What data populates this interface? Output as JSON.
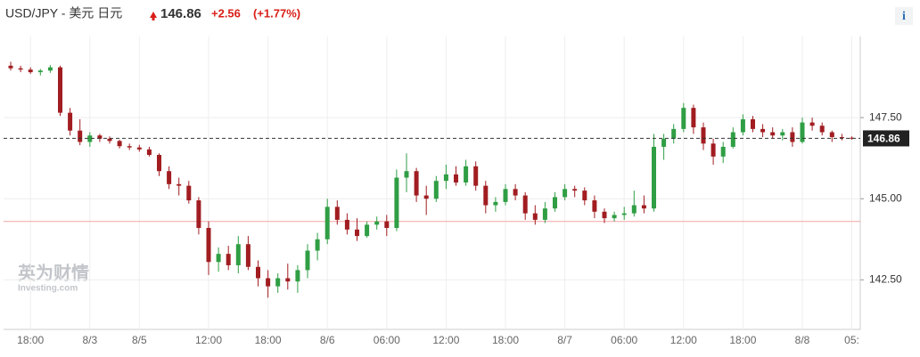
{
  "chart_data": {
    "type": "candlestick",
    "title": "USD/JPY - 美元 日元",
    "last_price": 146.86,
    "change": "+2.56",
    "change_pct": "(+1.77%)",
    "info": "i",
    "watermark": [
      "英为财情",
      "Investing.com"
    ],
    "reference_line": 144.3,
    "up_color": "#2f9e44",
    "down_color": "#a11d21",
    "grid": true,
    "categories": [
      null,
      null,
      "18:00",
      null,
      null,
      null,
      null,
      null,
      "8/3",
      null,
      null,
      null,
      null,
      "8/5",
      null,
      null,
      null,
      null,
      null,
      null,
      "12:00",
      null,
      null,
      null,
      null,
      null,
      "18:00",
      null,
      null,
      null,
      null,
      null,
      "8/6",
      null,
      null,
      null,
      null,
      null,
      "06:00",
      null,
      null,
      null,
      null,
      null,
      "12:00",
      null,
      null,
      null,
      null,
      null,
      "18:00",
      null,
      null,
      null,
      null,
      null,
      "8/7",
      null,
      null,
      null,
      null,
      null,
      "06:00",
      null,
      null,
      null,
      null,
      null,
      "12:00",
      null,
      null,
      null,
      null,
      null,
      "18:00",
      null,
      null,
      null,
      null,
      null,
      "8/8",
      null,
      null,
      null,
      null,
      "05:"
    ],
    "open": [
      149.1,
      149.02,
      148.98,
      148.9,
      148.95,
      149.05,
      147.65,
      147.1,
      146.75,
      146.95,
      146.85,
      146.78,
      146.62,
      146.58,
      146.52,
      146.35,
      145.85,
      145.45,
      145.4,
      144.95,
      144.1,
      143.05,
      143.3,
      142.95,
      143.6,
      142.9,
      142.55,
      142.3,
      142.55,
      142.45,
      142.8,
      143.4,
      143.75,
      144.75,
      144.35,
      144.05,
      143.85,
      144.2,
      144.3,
      144.1,
      145.65,
      145.85,
      145.1,
      145.0,
      145.55,
      145.75,
      145.5,
      146.0,
      145.4,
      144.8,
      144.9,
      145.3,
      145.1,
      144.55,
      144.35,
      144.7,
      145.05,
      145.3,
      145.25,
      144.95,
      144.6,
      144.4,
      144.5,
      144.55,
      144.8,
      144.7,
      146.6,
      146.85,
      147.15,
      147.8,
      147.2,
      146.7,
      146.3,
      146.6,
      147.05,
      147.45,
      147.15,
      147.05,
      146.95,
      147.05,
      146.75,
      147.35,
      147.25,
      147.05,
      146.9,
      146.88
    ],
    "high": [
      149.22,
      149.1,
      149.05,
      149.0,
      149.12,
      149.1,
      147.8,
      147.45,
      147.05,
      147.0,
      146.92,
      146.82,
      146.7,
      146.66,
      146.6,
      146.4,
      146.0,
      145.65,
      145.55,
      145.05,
      144.3,
      143.5,
      143.55,
      143.85,
      143.85,
      143.1,
      142.8,
      142.7,
      143.0,
      142.95,
      143.6,
      143.95,
      145.0,
      144.95,
      144.55,
      144.4,
      144.3,
      144.45,
      144.5,
      145.9,
      146.4,
      145.95,
      145.4,
      145.7,
      146.05,
      146.0,
      146.2,
      146.15,
      145.55,
      145.05,
      145.45,
      145.45,
      145.2,
      144.8,
      144.9,
      145.2,
      145.45,
      145.4,
      145.35,
      145.1,
      144.7,
      144.6,
      144.75,
      145.25,
      145.1,
      147.0,
      147.0,
      147.3,
      147.95,
      147.9,
      147.35,
      146.85,
      146.75,
      147.2,
      147.6,
      147.55,
      147.3,
      147.2,
      147.15,
      147.2,
      147.5,
      147.5,
      147.35,
      147.1,
      147.0,
      146.92
    ],
    "low": [
      148.95,
      148.9,
      148.85,
      148.8,
      148.88,
      147.55,
      146.95,
      146.65,
      146.6,
      146.75,
      146.7,
      146.55,
      146.5,
      146.45,
      146.3,
      145.7,
      145.3,
      145.1,
      144.85,
      143.9,
      142.65,
      142.75,
      142.8,
      142.7,
      142.8,
      142.3,
      141.95,
      142.1,
      142.2,
      142.1,
      142.55,
      143.1,
      143.6,
      144.2,
      143.9,
      143.7,
      143.8,
      144.05,
      143.85,
      144.0,
      145.2,
      144.9,
      144.5,
      144.9,
      145.3,
      145.4,
      145.4,
      145.25,
      144.55,
      144.6,
      144.8,
      144.95,
      144.35,
      144.2,
      144.25,
      144.6,
      144.95,
      145.05,
      144.8,
      144.4,
      144.25,
      144.3,
      144.35,
      144.45,
      144.55,
      144.6,
      146.2,
      146.7,
      147.05,
      147.0,
      146.5,
      146.05,
      146.1,
      146.55,
      146.95,
      147.05,
      146.9,
      146.85,
      146.8,
      146.6,
      146.7,
      147.1,
      146.95,
      146.75,
      146.8,
      146.82
    ],
    "close": [
      149.02,
      148.98,
      148.9,
      148.95,
      149.05,
      147.65,
      147.1,
      146.75,
      146.95,
      146.85,
      146.78,
      146.62,
      146.58,
      146.52,
      146.35,
      145.85,
      145.45,
      145.4,
      144.95,
      144.1,
      143.05,
      143.3,
      142.95,
      143.6,
      142.9,
      142.55,
      142.3,
      142.55,
      142.45,
      142.8,
      143.4,
      143.75,
      144.75,
      144.35,
      144.05,
      143.85,
      144.2,
      144.3,
      144.1,
      145.65,
      145.85,
      145.1,
      145.0,
      145.55,
      145.75,
      145.5,
      146.0,
      145.4,
      144.8,
      144.9,
      145.3,
      145.1,
      144.55,
      144.35,
      144.7,
      145.05,
      145.3,
      145.25,
      144.95,
      144.6,
      144.4,
      144.5,
      144.55,
      144.8,
      144.7,
      146.6,
      146.85,
      147.15,
      147.8,
      147.2,
      146.7,
      146.3,
      146.6,
      147.05,
      147.45,
      147.15,
      147.05,
      146.95,
      147.05,
      146.75,
      147.35,
      147.25,
      147.05,
      146.9,
      146.88,
      146.86
    ],
    "ylim": [
      141,
      150
    ],
    "yticks": [
      {
        "value": 142.5,
        "label": "142.50"
      },
      {
        "value": 145,
        "label": "145.00"
      },
      {
        "value": 147.5,
        "label": "147.50"
      }
    ]
  }
}
